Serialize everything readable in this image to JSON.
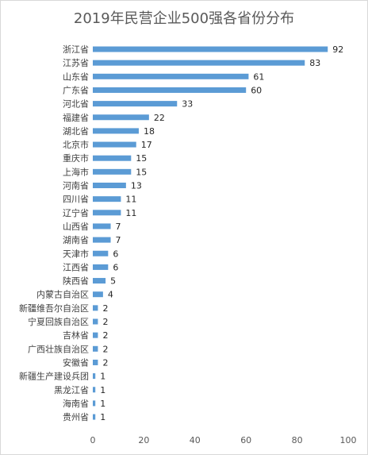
{
  "chart_data": {
    "type": "bar",
    "orientation": "horizontal",
    "title": "2019年民营企业500强各省份分布",
    "categories": [
      "浙江省",
      "江苏省",
      "山东省",
      "广东省",
      "河北省",
      "福建省",
      "湖北省",
      "北京市",
      "重庆市",
      "上海市",
      "河南省",
      "四川省",
      "辽宁省",
      "山西省",
      "湖南省",
      "天津市",
      "江西省",
      "陕西省",
      "内蒙古自治区",
      "新疆维吾尔自治区",
      "宁夏回族自治区",
      "吉林省",
      "广西壮族自治区",
      "安徽省",
      "新疆生产建设兵团",
      "黑龙江省",
      "海南省",
      "贵州省"
    ],
    "values": [
      92,
      83,
      61,
      60,
      33,
      22,
      18,
      17,
      15,
      15,
      13,
      11,
      11,
      7,
      7,
      6,
      6,
      5,
      4,
      2,
      2,
      2,
      2,
      2,
      1,
      1,
      1,
      1
    ],
    "xlim": [
      0,
      100
    ],
    "xticks": [
      0,
      20,
      40,
      60,
      80,
      100
    ],
    "xlabel": "",
    "ylabel": "",
    "data_labels": true,
    "grid": false,
    "bar_color": "#5b9bd5"
  }
}
